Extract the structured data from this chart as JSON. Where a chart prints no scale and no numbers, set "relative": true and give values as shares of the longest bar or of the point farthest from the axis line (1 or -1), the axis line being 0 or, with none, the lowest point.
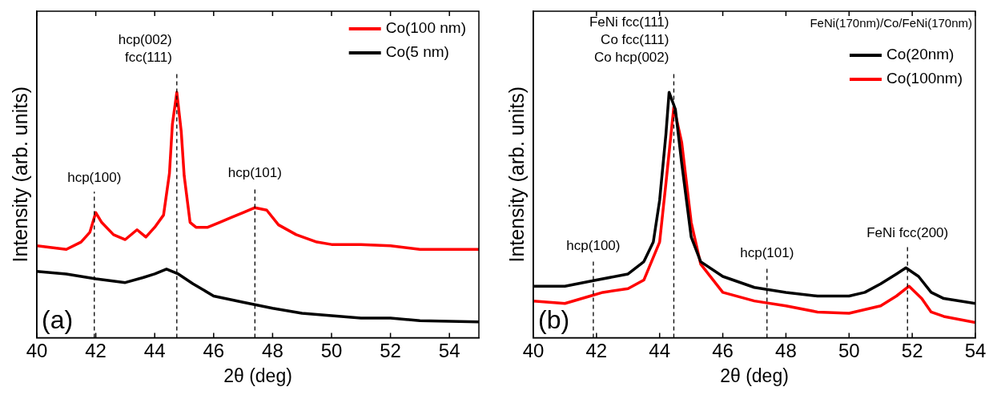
{
  "chart_data": [
    {
      "type": "line",
      "relative": true,
      "xlabel": "2θ (deg)",
      "ylabel": "Intensity (arb. units)",
      "xlim": [
        40,
        55
      ],
      "xticks": [
        40,
        42,
        44,
        46,
        48,
        50,
        52,
        54
      ],
      "legend": "top right",
      "marker": "none",
      "series": [
        {
          "name": "Co(100 nm)",
          "color": "#ff0000",
          "x": [
            40,
            41,
            41.5,
            41.8,
            42,
            42.2,
            42.6,
            43,
            43.4,
            43.7,
            44,
            44.3,
            44.5,
            44.6,
            44.75,
            44.9,
            45,
            45.2,
            45.4,
            45.8,
            46.2,
            46.6,
            47,
            47.4,
            47.8,
            48.2,
            48.8,
            49.5,
            50,
            51,
            52,
            53,
            54,
            55
          ],
          "values": [
            0.375,
            0.36,
            0.39,
            0.43,
            0.51,
            0.47,
            0.42,
            0.4,
            0.44,
            0.41,
            0.45,
            0.5,
            0.67,
            0.87,
            1,
            0.84,
            0.66,
            0.47,
            0.45,
            0.45,
            0.47,
            0.49,
            0.51,
            0.53,
            0.52,
            0.46,
            0.42,
            0.39,
            0.38,
            0.38,
            0.375,
            0.36,
            0.36,
            0.36
          ]
        },
        {
          "name": "Co(5 nm)",
          "color": "#000000",
          "x": [
            40,
            41,
            42,
            43,
            43.6,
            44,
            44.4,
            44.8,
            45.3,
            46,
            47,
            48,
            49,
            50,
            51,
            52,
            53,
            55
          ],
          "values": [
            0.27,
            0.26,
            0.24,
            0.225,
            0.245,
            0.26,
            0.28,
            0.26,
            0.22,
            0.17,
            0.145,
            0.12,
            0.1,
            0.09,
            0.08,
            0.08,
            0.07,
            0.065
          ]
        }
      ],
      "ref_lines": [
        {
          "axis": "x",
          "value": 41.95,
          "label": "hcp(100)",
          "line_style": "dashed",
          "color": "#000000"
        },
        {
          "axis": "x",
          "value": 44.75,
          "label": "hcp(002)\nfcc(111)",
          "line_style": "dashed",
          "color": "#000000"
        },
        {
          "axis": "x",
          "value": 47.4,
          "label": "hcp(101)",
          "line_style": "dashed",
          "color": "#000000"
        }
      ],
      "annotations": [
        "(a)"
      ]
    },
    {
      "type": "line",
      "relative": true,
      "xlabel": "2θ (deg)",
      "ylabel": "Intensity (arb. units)",
      "xlim": [
        40,
        54
      ],
      "xticks": [
        40,
        42,
        44,
        46,
        48,
        50,
        52,
        54
      ],
      "legend": "top right",
      "marker": "none",
      "series": [
        {
          "name": "Co(20nm)",
          "color": "#000000",
          "x": [
            40,
            41,
            42,
            43,
            43.5,
            43.8,
            44,
            44.2,
            44.3,
            44.5,
            44.7,
            45,
            45.3,
            46,
            47,
            48,
            49,
            50,
            50.5,
            51,
            51.5,
            51.8,
            52.2,
            52.6,
            53,
            54
          ],
          "values": [
            0.21,
            0.21,
            0.235,
            0.26,
            0.31,
            0.39,
            0.56,
            0.83,
            1,
            0.93,
            0.71,
            0.41,
            0.31,
            0.25,
            0.205,
            0.185,
            0.17,
            0.17,
            0.185,
            0.22,
            0.26,
            0.285,
            0.25,
            0.185,
            0.16,
            0.14
          ]
        },
        {
          "name": "Co(100nm)",
          "color": "#ff0000",
          "x": [
            40,
            41,
            41.8,
            42.2,
            43,
            43.5,
            44,
            44.2,
            44.45,
            44.7,
            45,
            45.3,
            46,
            47,
            48,
            49,
            50,
            51,
            51.5,
            51.9,
            52.3,
            52.6,
            53,
            54
          ],
          "values": [
            0.15,
            0.14,
            0.17,
            0.185,
            0.2,
            0.235,
            0.39,
            0.63,
            0.94,
            0.795,
            0.47,
            0.3,
            0.185,
            0.15,
            0.13,
            0.105,
            0.1,
            0.13,
            0.17,
            0.21,
            0.16,
            0.105,
            0.087,
            0.062
          ]
        }
      ],
      "ref_lines": [
        {
          "axis": "x",
          "value": 41.9,
          "label": "hcp(100)",
          "line_style": "dashed",
          "color": "#000000"
        },
        {
          "axis": "x",
          "value": 44.45,
          "label": "FeNi fcc(111)\nCo fcc(111)\nCo hcp(002)",
          "line_style": "dashed",
          "color": "#000000"
        },
        {
          "axis": "x",
          "value": 47.4,
          "label": "hcp(101)",
          "line_style": "dashed",
          "color": "#000000"
        },
        {
          "axis": "x",
          "value": 51.85,
          "label": "FeNi fcc(200)",
          "line_style": "dashed",
          "color": "#000000"
        }
      ],
      "annotations": [
        "FeNi(170nm)/Co/FeNi(170nm)",
        "(b)"
      ]
    }
  ]
}
